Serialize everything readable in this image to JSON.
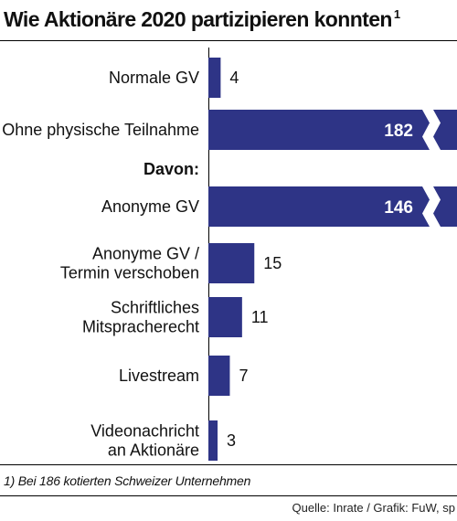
{
  "header": {
    "title": "Wie Aktionäre 2020 partizipieren konnten",
    "title_footnote_mark": "1"
  },
  "footer": {
    "footnote": "1) Bei 186 kotierten Schweizer Unternehmen",
    "source": "Quelle: Inrate / Grafik: FuW, sp"
  },
  "colors": {
    "bar": "#2e3486",
    "bar_label_inside": "#ffffff",
    "text": "#111111"
  },
  "chart_data": {
    "type": "bar",
    "orientation": "horizontal",
    "axis_break": true,
    "categories": [
      [
        "Normale GV"
      ],
      [
        "Ohne physische Teilnahme"
      ],
      [
        "Davon:"
      ],
      [
        "Anonyme GV"
      ],
      [
        "Anonyme GV /",
        "Termin verschoben"
      ],
      [
        "Schriftliches",
        "Mitspracherecht"
      ],
      [
        "Livestream"
      ],
      [
        "Videonachricht",
        "an Aktionäre"
      ]
    ],
    "category_bold": [
      false,
      false,
      true,
      false,
      false,
      false,
      false,
      false
    ],
    "values": [
      4,
      182,
      null,
      146,
      15,
      11,
      7,
      3
    ],
    "broken_bars": [
      false,
      true,
      false,
      true,
      false,
      false,
      false,
      false
    ],
    "title": "",
    "xlabel": "",
    "ylabel": ""
  }
}
